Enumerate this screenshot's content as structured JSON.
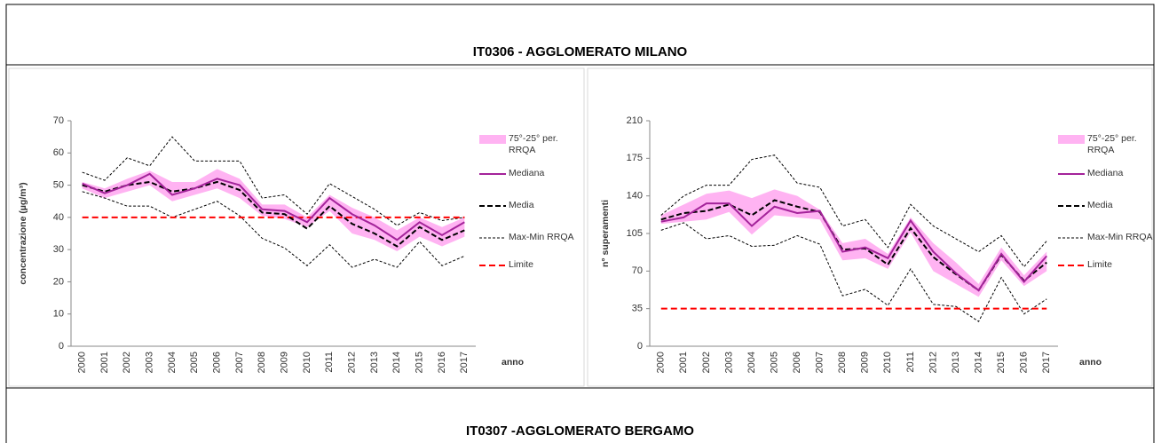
{
  "sections": [
    {
      "title": "IT0306 - AGGLOMERATO MILANO"
    },
    {
      "title": "IT0307 -AGGLOMERATO BERGAMO"
    }
  ],
  "chart_data": [
    {
      "type": "line",
      "ylabel": "concentrazione (µg/m³)",
      "xlabel": "anno",
      "categories": [
        "2000",
        "2001",
        "2002",
        "2003",
        "2004",
        "2005",
        "2006",
        "2007",
        "2008",
        "2009",
        "2010",
        "2011",
        "2012",
        "2013",
        "2014",
        "2015",
        "2016",
        "2017"
      ],
      "ylim": [
        0,
        70
      ],
      "yticks": [
        0,
        10,
        20,
        30,
        40,
        50,
        60,
        70
      ],
      "series": [
        {
          "name": "75°-25° per. RRQA",
          "style": "band",
          "color": "#ff99ee",
          "values": [
            51,
            49,
            52,
            54.5,
            51,
            51,
            55,
            52,
            44,
            44,
            40,
            47,
            43,
            40,
            36,
            40,
            37,
            40
          ],
          "lower": [
            49,
            46,
            48,
            50,
            45,
            47,
            49,
            46,
            40.5,
            39.5,
            37,
            42,
            35,
            33,
            29.5,
            34,
            31,
            34
          ]
        },
        {
          "name": "Mediana",
          "style": "solid",
          "color": "#a4239a",
          "values": [
            50.5,
            47.5,
            50,
            53.5,
            47,
            49,
            52,
            50,
            42.5,
            42,
            38.5,
            46,
            41,
            37.5,
            33,
            38.5,
            34.5,
            38.5
          ]
        },
        {
          "name": "Media",
          "style": "dashed",
          "color": "#000000",
          "values": [
            50,
            48,
            50,
            51,
            48,
            49,
            51,
            48.5,
            41.5,
            41,
            36.5,
            43.5,
            38,
            35,
            31,
            37,
            33,
            36
          ]
        },
        {
          "name": "Max-Min RRQA",
          "style": "dotted",
          "color": "#000000",
          "values": [
            54,
            51.5,
            58.5,
            56,
            65,
            57.5,
            57.5,
            57.5,
            46,
            47,
            41,
            50.5,
            46.5,
            42.5,
            37.5,
            41.5,
            39,
            40
          ],
          "lower": [
            48,
            46,
            43.5,
            43.5,
            40,
            42.5,
            45,
            40.5,
            33.5,
            30.5,
            25,
            31.5,
            24.5,
            27,
            24.5,
            32.5,
            25,
            28
          ]
        },
        {
          "name": "Limite",
          "style": "hline",
          "color": "#ff0000",
          "value": 40
        }
      ]
    },
    {
      "type": "line",
      "ylabel": "n° superamenti",
      "xlabel": "anno",
      "categories": [
        "2000",
        "2001",
        "2002",
        "2003",
        "2004",
        "2005",
        "2006",
        "2007",
        "2008",
        "2009",
        "2010",
        "2011",
        "2012",
        "2013",
        "2014",
        "2015",
        "2016",
        "2017"
      ],
      "ylim": [
        0,
        210
      ],
      "yticks": [
        0,
        35,
        70,
        105,
        140,
        175,
        210
      ],
      "series": [
        {
          "name": "75°-25° per. RRQA",
          "style": "band",
          "color": "#ff99ee",
          "values": [
            122,
            132,
            142,
            145,
            138,
            146,
            140,
            127,
            96,
            100,
            86,
            120,
            96,
            78,
            58,
            92,
            66,
            88
          ],
          "lower": [
            114,
            116,
            118,
            125,
            104,
            122,
            120,
            118,
            80,
            82,
            72,
            106,
            70,
            58,
            46,
            80,
            56,
            70
          ]
        },
        {
          "name": "Mediana",
          "style": "solid",
          "color": "#a4239a",
          "values": [
            116,
            120,
            133,
            133,
            112,
            130,
            124,
            126,
            88,
            92,
            82,
            117,
            88,
            68,
            52,
            86,
            60,
            84
          ]
        },
        {
          "name": "Media",
          "style": "dashed",
          "color": "#000000",
          "values": [
            118,
            124,
            126,
            132,
            122,
            136,
            130,
            125,
            90,
            91,
            76,
            110,
            83,
            67,
            52,
            85,
            61,
            78
          ]
        },
        {
          "name": "Max-Min RRQA",
          "style": "dotted",
          "color": "#000000",
          "values": [
            122,
            140,
            150,
            150,
            174,
            178,
            152,
            148,
            112,
            118,
            92,
            132,
            112,
            100,
            88,
            103,
            74,
            98
          ],
          "lower": [
            108,
            115,
            100,
            103,
            93,
            94,
            103,
            95,
            47,
            53,
            38,
            72,
            39,
            37,
            23,
            64,
            30,
            44
          ]
        },
        {
          "name": "Limite",
          "style": "hline",
          "color": "#ff0000",
          "value": 35
        }
      ]
    }
  ]
}
